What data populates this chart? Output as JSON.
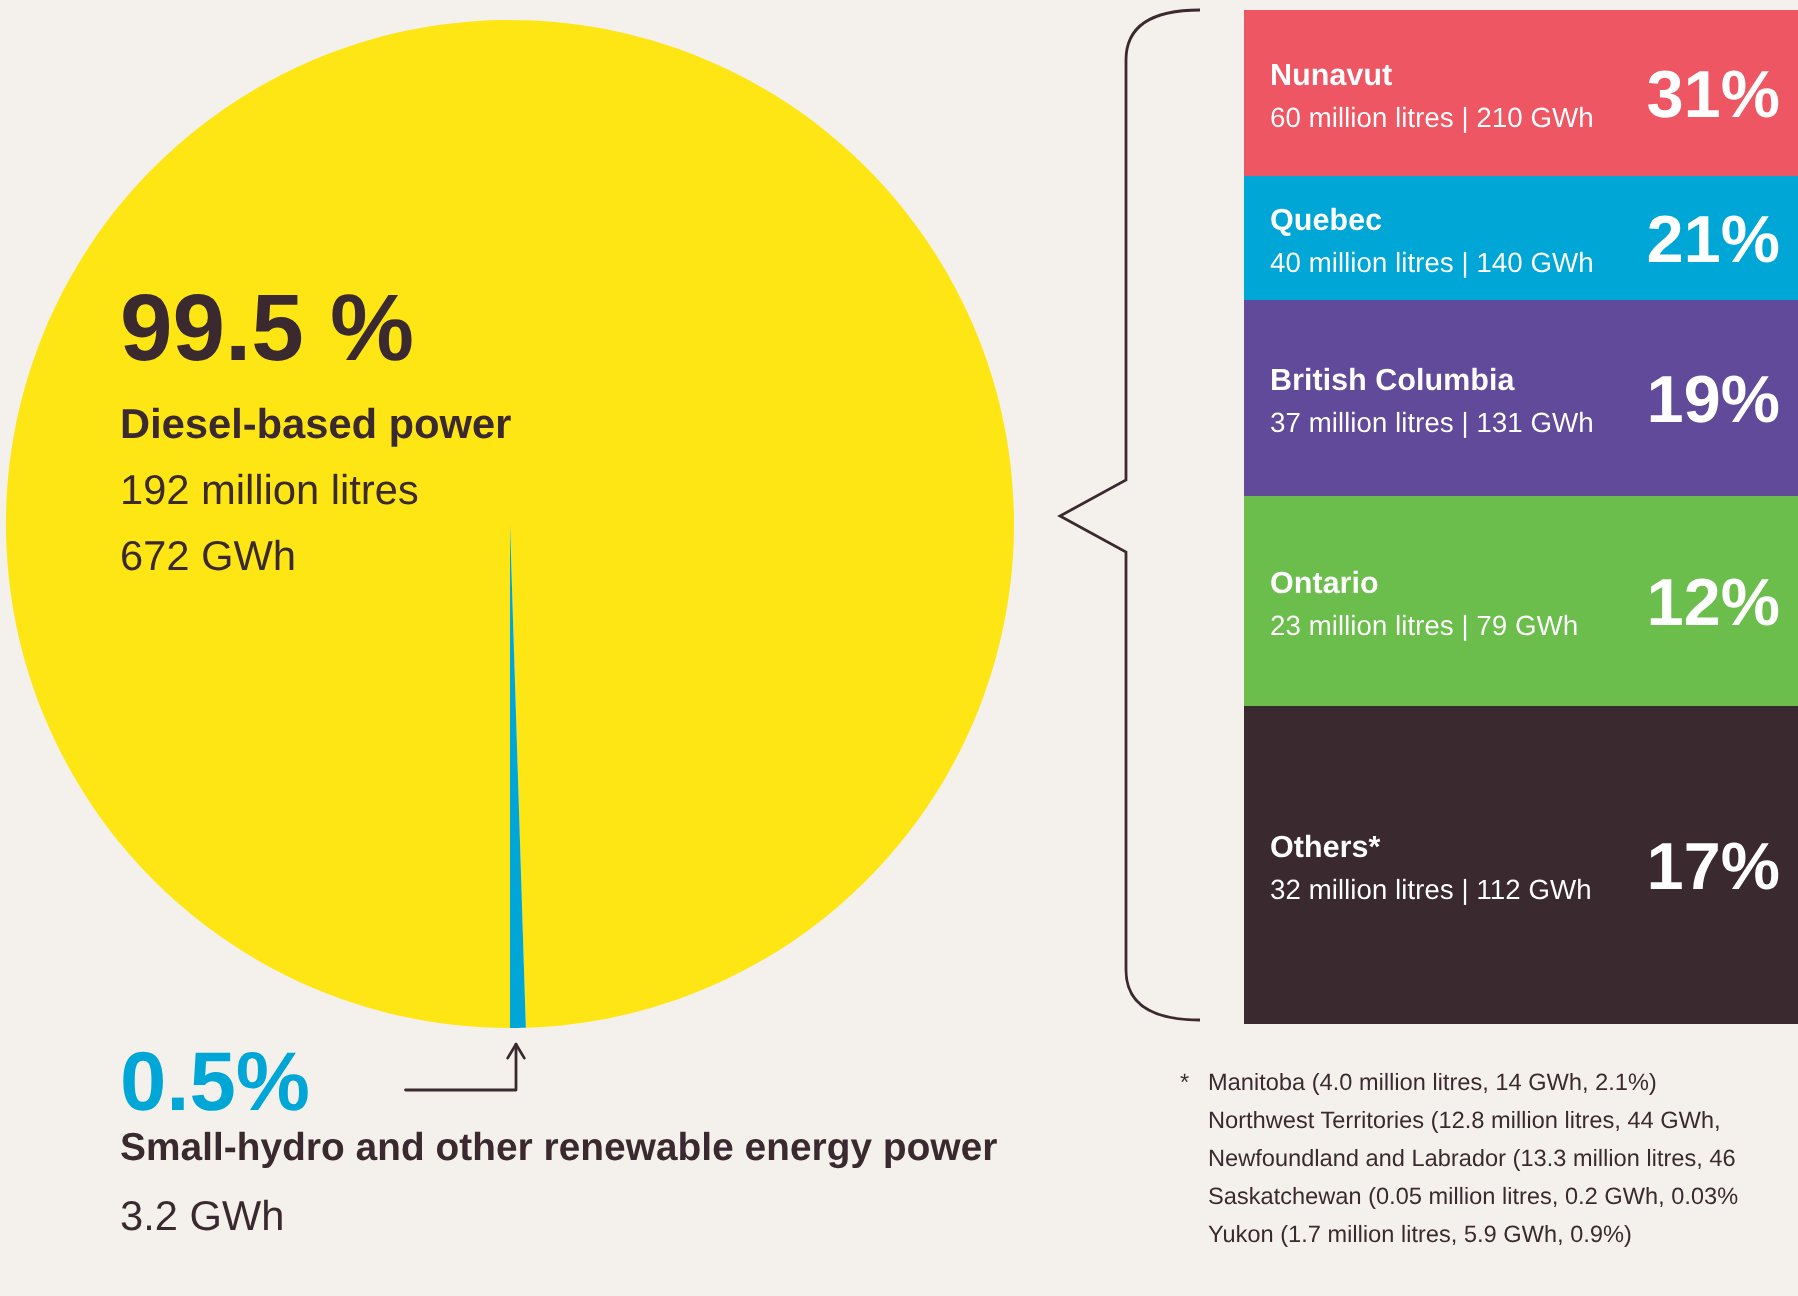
{
  "chart_data": [
    {
      "type": "pie",
      "categories": [
        "Diesel-based power",
        "Small-hydro and other renewable energy power"
      ],
      "values": [
        99.5,
        0.5
      ],
      "value_labels": [
        "99.5 %",
        "0.5%"
      ],
      "colors": [
        "#fde614",
        "#00a6d6"
      ],
      "annotations": [
        "192 million litres",
        "672 GWh",
        "3.2 GWh"
      ]
    },
    {
      "type": "other",
      "categories": [
        "Nunavut",
        "Quebec",
        "British Columbia",
        "Ontario",
        "Others*"
      ],
      "values": [
        31,
        21,
        19,
        12,
        17
      ],
      "value_labels": [
        "31%",
        "21%",
        "19%",
        "12%",
        "17%"
      ],
      "colors": [
        "#ef5663",
        "#00a6d6",
        "#614a9a",
        "#6bbe4b",
        "#3a2a30"
      ],
      "annotations": [
        "60 million litres | 210 GWh",
        "40 million litres | 140 GWh",
        "37 million litres | 131 GWh",
        "23 million litres | 79 GWh",
        "32 million litres | 112 GWh",
        "*",
        "Manitoba (4.0 million litres, 14 GWh, 2.1%)",
        "Northwest Territories (12.8 million litres, 44 GWh,",
        "Newfoundland and Labrador (13.3 million litres, 46",
        "Saskatchewan (0.05 million litres, 0.2 GWh, 0.03%",
        "Yukon (1.7 million litres, 5.9 GWh, 0.9%)"
      ]
    }
  ]
}
